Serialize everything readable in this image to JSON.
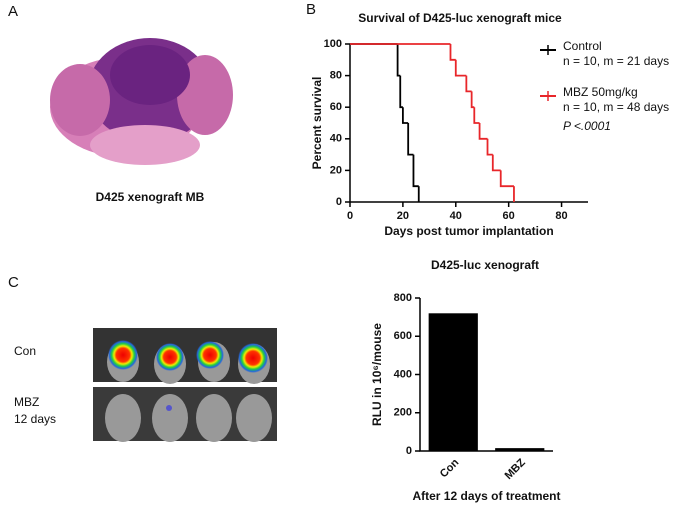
{
  "panels": [
    "A",
    "B",
    "C"
  ],
  "histology_caption": "D425 xenograft MB",
  "imaging_labels": {
    "control": "Con",
    "treated": [
      "MBZ",
      "12 days"
    ]
  },
  "chart_data": [
    {
      "type": "line",
      "step": true,
      "title": "Survival of D425-luc xenograft mice",
      "x_label": "Days post tumor implantation",
      "y_label": "Percent survival",
      "xlim": [
        0,
        90
      ],
      "xticks": [
        0,
        20,
        40,
        60,
        80
      ],
      "ylim": [
        0,
        100
      ],
      "yticks": [
        0,
        20,
        40,
        60,
        80,
        100
      ],
      "series": [
        {
          "name": "Control",
          "detail": "n = 10, m = 21 days",
          "color": "#000000",
          "x": [
            0,
            18,
            19,
            20,
            22,
            24,
            26
          ],
          "values": [
            100,
            80,
            60,
            50,
            30,
            10,
            0
          ]
        },
        {
          "name": "MBZ 50mg/kg",
          "detail": "n = 10, m = 48 days",
          "color": "#e8262a",
          "x": [
            0,
            38,
            40,
            44,
            46,
            47,
            49,
            52,
            54,
            57,
            62
          ],
          "values": [
            100,
            90,
            80,
            70,
            60,
            50,
            40,
            30,
            20,
            10,
            0
          ]
        }
      ],
      "annotation": "P <.0001"
    },
    {
      "type": "bar",
      "title": "D425-luc xenograft",
      "x_label": "After 12 days of treatment",
      "y_label": "RLU in 10⁶/mouse",
      "categories": [
        "Con",
        "MBZ"
      ],
      "values": [
        720,
        15
      ],
      "color": "#000000",
      "ylim": [
        0,
        800
      ],
      "yticks": [
        0,
        200,
        400,
        600,
        800
      ]
    }
  ]
}
